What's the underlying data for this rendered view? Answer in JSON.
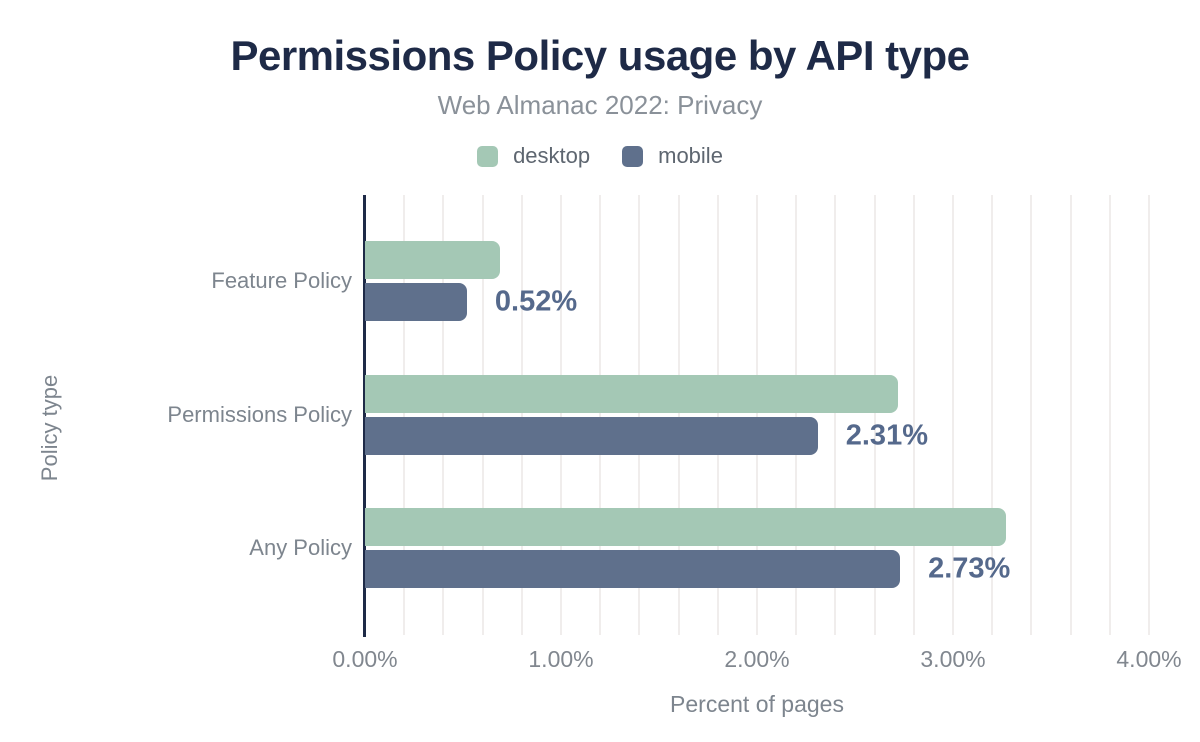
{
  "header": {
    "title": "Permissions Policy usage by API type",
    "subtitle": "Web Almanac 2022: Privacy"
  },
  "colors": {
    "title": "#1e2a47",
    "subtitle": "#8a9199",
    "axis_text": "#7d858e",
    "axis_line": "#1e2a47",
    "gridline": "#f0edec",
    "bar_label": "#55698c",
    "desktop": "#a4c8b5",
    "mobile": "#5f708c"
  },
  "chart_data": {
    "type": "bar",
    "orientation": "horizontal",
    "title": "Permissions Policy usage by API type",
    "subtitle": "Web Almanac 2022: Privacy",
    "categories": [
      "Feature Policy",
      "Permissions Policy",
      "Any Policy"
    ],
    "series": [
      {
        "name": "desktop",
        "color": "#a4c8b5",
        "values": [
          0.69,
          2.72,
          3.27
        ]
      },
      {
        "name": "mobile",
        "color": "#5f708c",
        "values": [
          0.52,
          2.31,
          2.73
        ]
      }
    ],
    "bar_labels": [
      "0.52%",
      "2.31%",
      "2.73%"
    ],
    "xlabel": "Percent of pages",
    "ylabel": "Policy type",
    "xlim": [
      0,
      4.0
    ],
    "x_ticks": [
      "0.00%",
      "1.00%",
      "2.00%",
      "3.00%",
      "4.00%"
    ],
    "gridline_step": 0.2,
    "legend_position": "top",
    "grid": true
  }
}
